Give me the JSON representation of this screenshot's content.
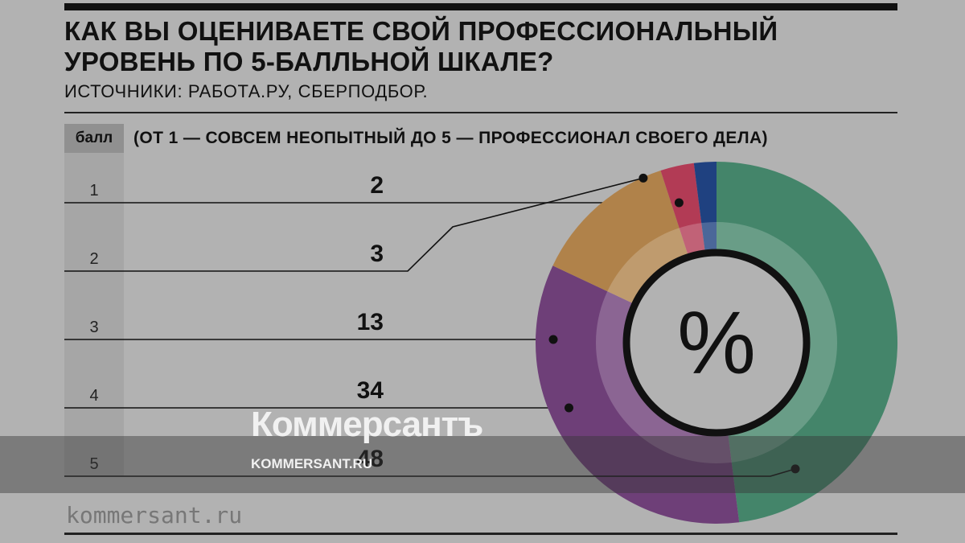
{
  "header": {
    "title": "КАК ВЫ ОЦЕНИВАЕТЕ СВОЙ ПРОФЕССИОНАЛЬНЫЙ УРОВЕНЬ ПО 5-БАЛЛЬНОЙ ШКАЛЕ?",
    "source": "ИСТОЧНИКИ: РАБОТА.РУ, СБЕРПОДБОР."
  },
  "table": {
    "score_header": "балл",
    "scale_caption": "(ОТ 1 — СОВСЕМ НЕОПЫТНЫЙ ДО 5 — ПРОФЕССИОНАЛ СВОЕГО ДЕЛА)"
  },
  "center_symbol": "%",
  "watermark": {
    "logo": "Коммерсантъ",
    "url": "KOMMERSANT.RU"
  },
  "footer": {
    "site": "kommersant.ru"
  },
  "chart_data": {
    "type": "pie",
    "variant": "donut",
    "unit": "%",
    "categories": [
      "1",
      "2",
      "3",
      "4",
      "5"
    ],
    "values": [
      2,
      3,
      13,
      34,
      48
    ],
    "colors": [
      "#1f4180",
      "#b23b55",
      "#b0824a",
      "#6e3f78",
      "#44856a"
    ],
    "value_labels": [
      "2",
      "3",
      "13",
      "34",
      "48"
    ]
  }
}
